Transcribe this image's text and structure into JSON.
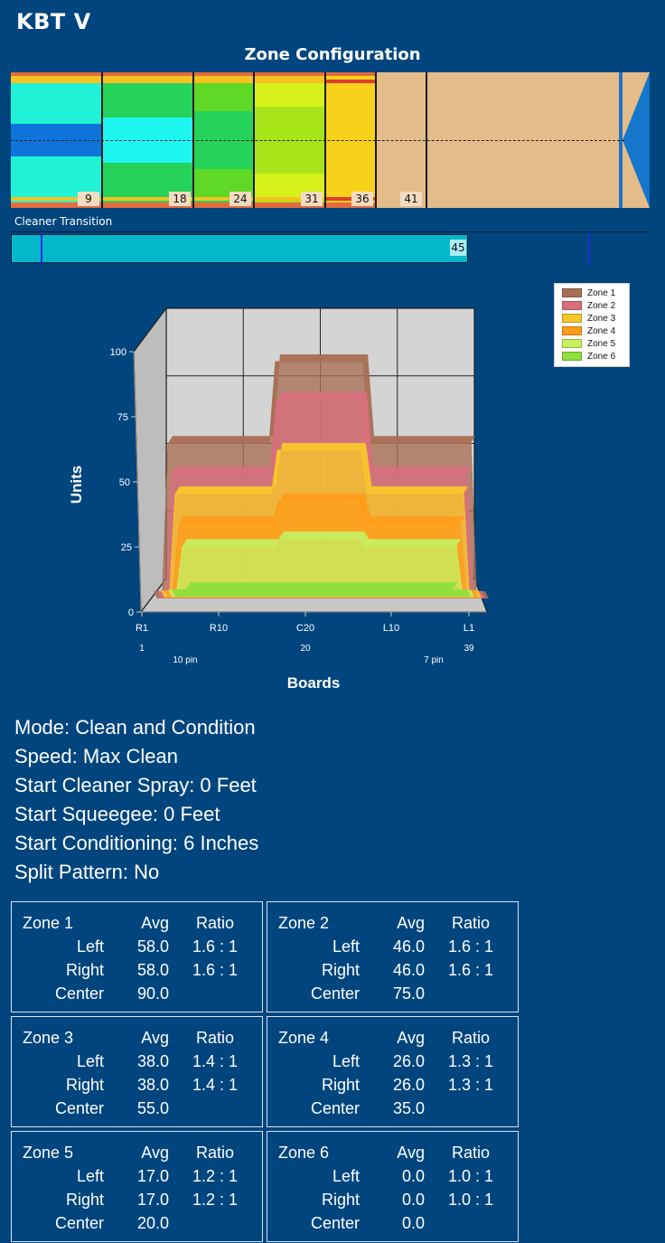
{
  "app": {
    "title": "KBT V"
  },
  "zone_config": {
    "title": "Zone Configuration",
    "markers": [
      "9",
      "18",
      "24",
      "31",
      "36",
      "41"
    ]
  },
  "cleaner": {
    "label": "Cleaner Transition",
    "value": "45"
  },
  "chart_data": {
    "type": "area",
    "xlabel": "Boards",
    "ylabel": "Units",
    "ylim": [
      0,
      100
    ],
    "yticks": [
      "0",
      "25",
      "50",
      "75",
      "100"
    ],
    "xticks": [
      "R1",
      "R10",
      "C20",
      "L10",
      "L1"
    ],
    "xsub_ticks": [
      "1",
      "20",
      "39"
    ],
    "pin_labels": [
      "10 pin",
      "7 pin"
    ],
    "legend_position": "top-right",
    "grid": true,
    "series": [
      {
        "name": "Zone 1",
        "color": "#a86f54",
        "left": 58,
        "center": 90,
        "right": 58
      },
      {
        "name": "Zone 2",
        "color": "#d86f7d",
        "left": 46,
        "center": 75,
        "right": 46
      },
      {
        "name": "Zone 3",
        "color": "#f7c72a",
        "left": 38,
        "center": 55,
        "right": 38
      },
      {
        "name": "Zone 4",
        "color": "#ff9c1a",
        "left": 26,
        "center": 35,
        "right": 26
      },
      {
        "name": "Zone 5",
        "color": "#c5f060",
        "left": 17,
        "center": 20,
        "right": 17
      },
      {
        "name": "Zone 6",
        "color": "#8ede3c",
        "left": 0,
        "center": 0,
        "right": 0
      }
    ]
  },
  "settings": {
    "mode": "Mode: Clean and Condition",
    "speed": "Speed: Max Clean",
    "start_cleaner": "Start Cleaner Spray: 0 Feet",
    "start_squeegee": "Start Squeegee: 0 Feet",
    "start_conditioning": "Start Conditioning: 6 Inches",
    "split": "Split Pattern: No"
  },
  "zones": [
    {
      "name": "Zone 1",
      "avg_label": "Avg",
      "ratio_label": "Ratio",
      "left_label": "Left",
      "right_label": "Right",
      "center_label": "Center",
      "left_avg": "58.0",
      "left_ratio": "1.6 : 1",
      "right_avg": "58.0",
      "right_ratio": "1.6 : 1",
      "center_avg": "90.0"
    },
    {
      "name": "Zone 2",
      "avg_label": "Avg",
      "ratio_label": "Ratio",
      "left_label": "Left",
      "right_label": "Right",
      "center_label": "Center",
      "left_avg": "46.0",
      "left_ratio": "1.6 : 1",
      "right_avg": "46.0",
      "right_ratio": "1.6 : 1",
      "center_avg": "75.0"
    },
    {
      "name": "Zone 3",
      "avg_label": "Avg",
      "ratio_label": "Ratio",
      "left_label": "Left",
      "right_label": "Right",
      "center_label": "Center",
      "left_avg": "38.0",
      "left_ratio": "1.4 : 1",
      "right_avg": "38.0",
      "right_ratio": "1.4 : 1",
      "center_avg": "55.0"
    },
    {
      "name": "Zone 4",
      "avg_label": "Avg",
      "ratio_label": "Ratio",
      "left_label": "Left",
      "right_label": "Right",
      "center_label": "Center",
      "left_avg": "26.0",
      "left_ratio": "1.3 : 1",
      "right_avg": "26.0",
      "right_ratio": "1.3 : 1",
      "center_avg": "35.0"
    },
    {
      "name": "Zone 5",
      "avg_label": "Avg",
      "ratio_label": "Ratio",
      "left_label": "Left",
      "right_label": "Right",
      "center_label": "Center",
      "left_avg": "17.0",
      "left_ratio": "1.2 : 1",
      "right_avg": "17.0",
      "right_ratio": "1.2 : 1",
      "center_avg": "20.0"
    },
    {
      "name": "Zone 6",
      "avg_label": "Avg",
      "ratio_label": "Ratio",
      "left_label": "Left",
      "right_label": "Right",
      "center_label": "Center",
      "left_avg": "0.0",
      "left_ratio": "1.0 : 1",
      "right_avg": "0.0",
      "right_ratio": "1.0 : 1",
      "center_avg": "0.0"
    }
  ]
}
